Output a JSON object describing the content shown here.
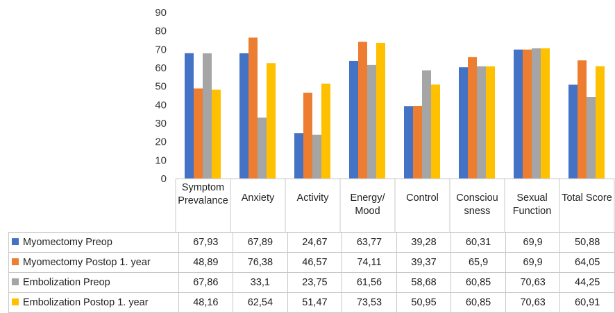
{
  "chart_data": {
    "type": "bar",
    "categories": [
      "Symptom Prevalance",
      "Anxiety",
      "Activity",
      "Energy/ Mood",
      "Control",
      "Consciou sness",
      "Sexual Function",
      "Total Score"
    ],
    "series": [
      {
        "name": "Myomectomy Preop",
        "color": "#4472C4",
        "values": [
          67.93,
          67.89,
          24.67,
          63.77,
          39.28,
          60.31,
          69.9,
          50.88
        ],
        "labels": [
          "67,93",
          "67,89",
          "24,67",
          "63,77",
          "39,28",
          "60,31",
          "69,9",
          "50,88"
        ]
      },
      {
        "name": "Myomectomy Postop 1. year",
        "color": "#ED7D31",
        "values": [
          48.89,
          76.38,
          46.57,
          74.11,
          39.37,
          65.9,
          69.9,
          64.05
        ],
        "labels": [
          "48,89",
          "76,38",
          "46,57",
          "74,11",
          "39,37",
          "65,9",
          "69,9",
          "64,05"
        ]
      },
      {
        "name": "Embolization Preop",
        "color": "#A5A5A5",
        "values": [
          67.86,
          33.1,
          23.75,
          61.56,
          58.68,
          60.85,
          70.63,
          44.25
        ],
        "labels": [
          "67,86",
          "33,1",
          "23,75",
          "61,56",
          "58,68",
          "60,85",
          "70,63",
          "44,25"
        ]
      },
      {
        "name": "Embolization Postop 1. year",
        "color": "#FFC000",
        "values": [
          48.16,
          62.54,
          51.47,
          73.53,
          50.95,
          60.85,
          70.63,
          60.91
        ],
        "labels": [
          "48,16",
          "62,54",
          "51,47",
          "73,53",
          "50,95",
          "60,85",
          "70,63",
          "60,91"
        ]
      }
    ],
    "ylim": [
      0,
      90
    ],
    "yticks": [
      "0",
      "10",
      "20",
      "30",
      "40",
      "50",
      "60",
      "70",
      "80",
      "90"
    ],
    "grid": false,
    "legend": "data-table-below"
  }
}
